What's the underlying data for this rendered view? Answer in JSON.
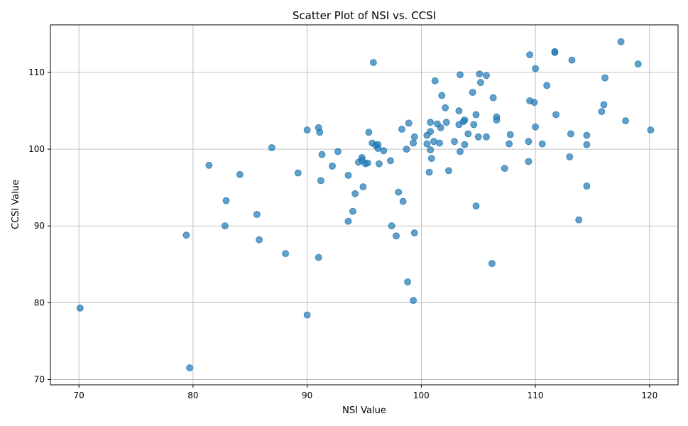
{
  "chart_data": {
    "type": "scatter",
    "title": "Scatter Plot of NSI vs. CCSI",
    "xlabel": "NSI Value",
    "ylabel": "CCSI Value",
    "xlim": [
      67.5,
      122.5
    ],
    "ylim": [
      69.3,
      116.2
    ],
    "xticks": [
      70,
      80,
      90,
      100,
      110,
      120
    ],
    "yticks": [
      70,
      80,
      90,
      100,
      110
    ],
    "grid": true,
    "color": "#1f77b4",
    "points": [
      [
        70.1,
        79.3
      ],
      [
        79.4,
        88.8
      ],
      [
        79.7,
        71.5
      ],
      [
        81.4,
        97.9
      ],
      [
        82.8,
        90.0
      ],
      [
        82.9,
        93.3
      ],
      [
        84.1,
        96.7
      ],
      [
        85.6,
        91.5
      ],
      [
        85.8,
        88.2
      ],
      [
        86.9,
        100.2
      ],
      [
        88.1,
        86.4
      ],
      [
        89.2,
        96.9
      ],
      [
        90.0,
        102.5
      ],
      [
        90.0,
        78.4
      ],
      [
        91.0,
        102.8
      ],
      [
        91.1,
        102.2
      ],
      [
        91.2,
        95.9
      ],
      [
        91.0,
        85.9
      ],
      [
        91.3,
        99.3
      ],
      [
        92.2,
        97.8
      ],
      [
        92.7,
        99.7
      ],
      [
        93.6,
        96.6
      ],
      [
        93.6,
        90.6
      ],
      [
        94.0,
        91.9
      ],
      [
        94.2,
        94.2
      ],
      [
        94.5,
        98.3
      ],
      [
        94.8,
        98.9
      ],
      [
        94.8,
        98.6
      ],
      [
        94.9,
        95.1
      ],
      [
        95.1,
        98.1
      ],
      [
        95.3,
        98.2
      ],
      [
        95.4,
        102.2
      ],
      [
        95.7,
        100.8
      ],
      [
        95.8,
        111.3
      ],
      [
        96.0,
        100.5
      ],
      [
        96.2,
        100.6
      ],
      [
        96.2,
        100.1
      ],
      [
        96.3,
        98.1
      ],
      [
        96.7,
        99.8
      ],
      [
        97.3,
        98.5
      ],
      [
        97.4,
        90.0
      ],
      [
        97.8,
        88.7
      ],
      [
        98.0,
        94.4
      ],
      [
        98.3,
        102.6
      ],
      [
        98.4,
        93.2
      ],
      [
        98.7,
        100.0
      ],
      [
        98.8,
        82.7
      ],
      [
        98.9,
        103.4
      ],
      [
        99.3,
        80.3
      ],
      [
        99.3,
        100.8
      ],
      [
        99.4,
        89.1
      ],
      [
        99.4,
        101.6
      ],
      [
        100.5,
        101.8
      ],
      [
        100.5,
        100.7
      ],
      [
        100.7,
        97.0
      ],
      [
        100.8,
        102.3
      ],
      [
        100.8,
        99.9
      ],
      [
        100.8,
        103.5
      ],
      [
        100.9,
        98.8
      ],
      [
        101.1,
        101.0
      ],
      [
        101.2,
        108.9
      ],
      [
        101.4,
        103.3
      ],
      [
        101.6,
        100.8
      ],
      [
        101.7,
        102.8
      ],
      [
        101.8,
        107.0
      ],
      [
        102.1,
        105.4
      ],
      [
        102.2,
        103.5
      ],
      [
        102.4,
        97.2
      ],
      [
        102.9,
        101.0
      ],
      [
        103.3,
        103.2
      ],
      [
        103.3,
        105.0
      ],
      [
        103.4,
        109.7
      ],
      [
        103.4,
        99.7
      ],
      [
        103.7,
        103.6
      ],
      [
        103.8,
        103.8
      ],
      [
        103.8,
        100.6
      ],
      [
        104.1,
        102.0
      ],
      [
        104.5,
        107.4
      ],
      [
        104.6,
        103.2
      ],
      [
        104.8,
        104.5
      ],
      [
        104.8,
        92.6
      ],
      [
        105.0,
        101.6
      ],
      [
        105.1,
        109.8
      ],
      [
        105.2,
        108.7
      ],
      [
        105.7,
        101.6
      ],
      [
        105.7,
        109.6
      ],
      [
        106.2,
        85.1
      ],
      [
        106.3,
        106.7
      ],
      [
        106.6,
        104.2
      ],
      [
        106.6,
        103.8
      ],
      [
        107.3,
        97.5
      ],
      [
        107.7,
        100.7
      ],
      [
        107.8,
        101.9
      ],
      [
        109.4,
        98.4
      ],
      [
        109.4,
        101.0
      ],
      [
        109.5,
        106.3
      ],
      [
        109.5,
        112.3
      ],
      [
        109.9,
        106.1
      ],
      [
        110.0,
        110.5
      ],
      [
        110.0,
        102.9
      ],
      [
        110.6,
        100.7
      ],
      [
        111.0,
        108.3
      ],
      [
        111.7,
        112.7
      ],
      [
        111.7,
        112.6
      ],
      [
        111.8,
        104.5
      ],
      [
        113.0,
        99.0
      ],
      [
        113.1,
        102.0
      ],
      [
        113.2,
        111.6
      ],
      [
        113.8,
        90.8
      ],
      [
        114.5,
        95.2
      ],
      [
        114.5,
        100.6
      ],
      [
        114.5,
        101.8
      ],
      [
        115.8,
        104.9
      ],
      [
        116.0,
        105.8
      ],
      [
        116.1,
        109.3
      ],
      [
        117.5,
        114.0
      ],
      [
        117.9,
        103.7
      ],
      [
        119.0,
        111.1
      ],
      [
        120.1,
        102.5
      ]
    ]
  }
}
